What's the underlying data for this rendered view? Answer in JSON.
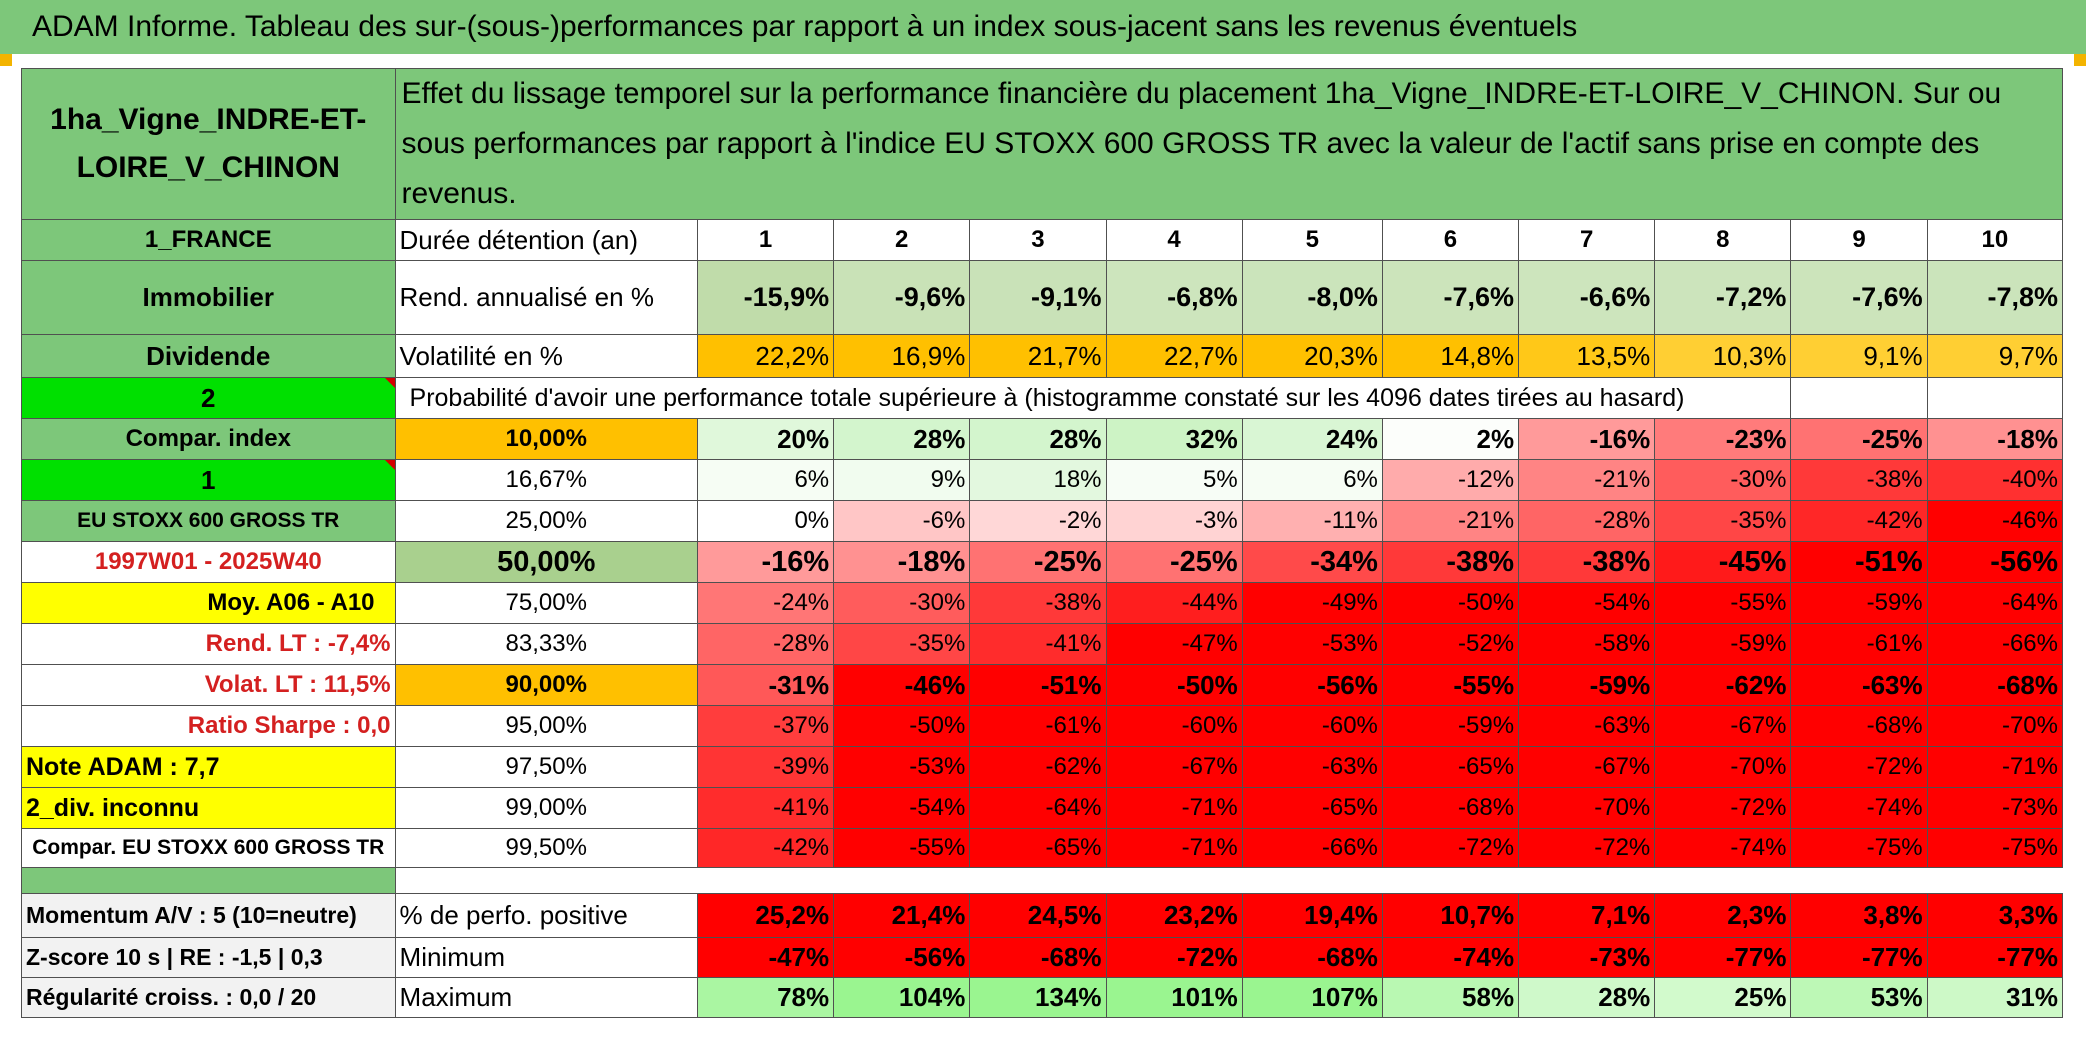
{
  "title": "ADAM Informe. Tableau des sur-(sous-)performances par rapport à un index sous-jacent sans les revenus éventuels",
  "asset_name": "1ha_Vigne_INDRE-ET-LOIRE_V_CHINON",
  "description": "Effet du lissage temporel sur la performance financière du placement 1ha_Vigne_INDRE-ET-LOIRE_V_CHINON. Sur ou sous performances par rapport à l'indice EU STOXX 600 GROSS TR avec la valeur de l'actif sans prise en compte des revenus.",
  "left_labels": {
    "country": "1_FRANCE",
    "category": "Immobilier",
    "type": "Dividende",
    "two": "2",
    "compar_index": "Compar. index",
    "one": "1",
    "index_name": "EU STOXX 600 GROSS TR",
    "period": "1997W01 - 2025W40",
    "moy": "Moy. A06 - A10",
    "rend_lt": "Rend. LT :   -7,4%",
    "volat_lt": "Volat. LT :   11,5%",
    "sharpe": "Ratio Sharpe :    0,0",
    "note": "Note ADAM : 7,7",
    "div": "2_div. inconnu",
    "compar": "Compar. EU STOXX 600 GROSS TR",
    "momentum": "Momentum A/V : 5 (10=neutre)",
    "zscore": "Z-score 10 s | RE : -1,5 | 0,3",
    "regularite": "Régularité croiss. : 0,0 / 20"
  },
  "row_labels": {
    "duree": "Durée détention (an)",
    "rend": "Rend. annualisé en %",
    "volat": "Volatilité en %",
    "proba": "Probabilité d'avoir une performance totale supérieure à (histogramme constaté sur les 4096 dates tirées au hasard)",
    "positive": "% de perfo. positive",
    "minimum": "Minimum",
    "maximum": "Maximum"
  },
  "years": [
    "1",
    "2",
    "3",
    "4",
    "5",
    "6",
    "7",
    "8",
    "9",
    "10"
  ],
  "rend": [
    "-15,9%",
    "-9,6%",
    "-9,1%",
    "-6,8%",
    "-8,0%",
    "-7,6%",
    "-6,6%",
    "-7,2%",
    "-7,6%",
    "-7,8%"
  ],
  "volat": [
    "22,2%",
    "16,9%",
    "21,7%",
    "22,7%",
    "20,3%",
    "14,8%",
    "13,5%",
    "10,3%",
    "9,1%",
    "9,7%"
  ],
  "prob_rows": [
    {
      "threshold": "10,00%",
      "values": [
        "20%",
        "28%",
        "28%",
        "32%",
        "24%",
        "2%",
        "-16%",
        "-23%",
        "-25%",
        "-18%"
      ]
    },
    {
      "threshold": "16,67%",
      "values": [
        "6%",
        "9%",
        "18%",
        "5%",
        "6%",
        "-12%",
        "-21%",
        "-30%",
        "-38%",
        "-40%"
      ]
    },
    {
      "threshold": "25,00%",
      "values": [
        "0%",
        "-6%",
        "-2%",
        "-3%",
        "-11%",
        "-21%",
        "-28%",
        "-35%",
        "-42%",
        "-46%"
      ]
    },
    {
      "threshold": "50,00%",
      "values": [
        "-16%",
        "-18%",
        "-25%",
        "-25%",
        "-34%",
        "-38%",
        "-38%",
        "-45%",
        "-51%",
        "-56%"
      ]
    },
    {
      "threshold": "75,00%",
      "values": [
        "-24%",
        "-30%",
        "-38%",
        "-44%",
        "-49%",
        "-50%",
        "-54%",
        "-55%",
        "-59%",
        "-64%"
      ]
    },
    {
      "threshold": "83,33%",
      "values": [
        "-28%",
        "-35%",
        "-41%",
        "-47%",
        "-53%",
        "-52%",
        "-58%",
        "-59%",
        "-61%",
        "-66%"
      ]
    },
    {
      "threshold": "90,00%",
      "values": [
        "-31%",
        "-46%",
        "-51%",
        "-50%",
        "-56%",
        "-55%",
        "-59%",
        "-62%",
        "-63%",
        "-68%"
      ]
    },
    {
      "threshold": "95,00%",
      "values": [
        "-37%",
        "-50%",
        "-61%",
        "-60%",
        "-60%",
        "-59%",
        "-63%",
        "-67%",
        "-68%",
        "-70%"
      ]
    },
    {
      "threshold": "97,50%",
      "values": [
        "-39%",
        "-53%",
        "-62%",
        "-67%",
        "-63%",
        "-65%",
        "-67%",
        "-70%",
        "-72%",
        "-71%"
      ]
    },
    {
      "threshold": "99,00%",
      "values": [
        "-41%",
        "-54%",
        "-64%",
        "-71%",
        "-65%",
        "-68%",
        "-70%",
        "-72%",
        "-74%",
        "-73%"
      ]
    },
    {
      "threshold": "99,50%",
      "values": [
        "-42%",
        "-55%",
        "-65%",
        "-71%",
        "-66%",
        "-72%",
        "-72%",
        "-74%",
        "-75%",
        "-75%"
      ]
    }
  ],
  "positive": [
    "25,2%",
    "21,4%",
    "24,5%",
    "23,2%",
    "19,4%",
    "10,7%",
    "7,1%",
    "2,3%",
    "3,8%",
    "3,3%"
  ],
  "minimum": [
    "-47%",
    "-56%",
    "-68%",
    "-72%",
    "-68%",
    "-74%",
    "-73%",
    "-77%",
    "-77%",
    "-77%"
  ],
  "maximum": [
    "78%",
    "104%",
    "134%",
    "101%",
    "107%",
    "58%",
    "28%",
    "25%",
    "53%",
    "31%"
  ],
  "colors": {
    "title_green": "#7dc77a",
    "rend_green": "#c6e0b4",
    "volat_orange": "#ffc000",
    "red_strong": "#ff0000",
    "max_green": "#a6f5a0"
  }
}
